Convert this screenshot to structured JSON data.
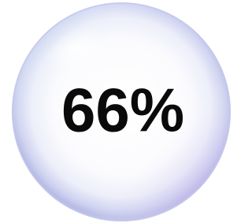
{
  "bubble": {
    "text": "66%"
  }
}
